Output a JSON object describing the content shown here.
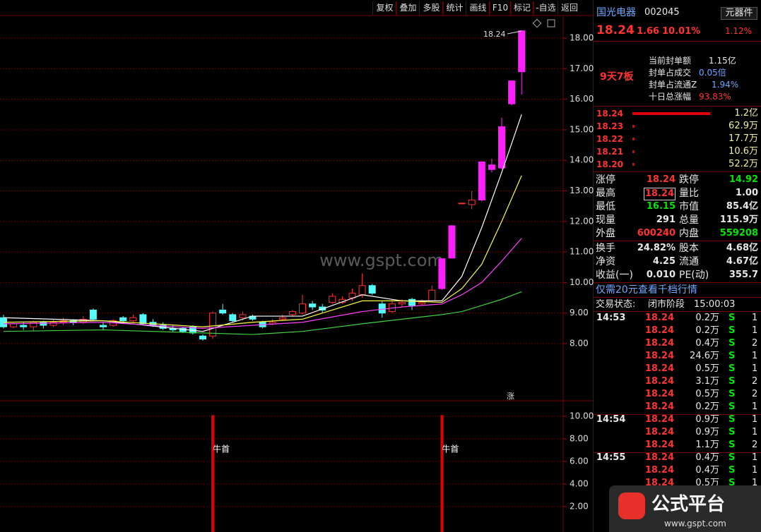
{
  "toolbar": [
    "复权",
    "叠加",
    "多股",
    "统计",
    "画线",
    "F10",
    "标记",
    "-自选",
    "返回"
  ],
  "chart_data": {
    "type": "candlestick",
    "categories": [
      null,
      null,
      null,
      null,
      null,
      null,
      null,
      null,
      null,
      null,
      null,
      null,
      null,
      null,
      null,
      null,
      null,
      null,
      null,
      null,
      null,
      null,
      null,
      null,
      null,
      null,
      null,
      null,
      null,
      null,
      null,
      null,
      null,
      null,
      null,
      null,
      null,
      null,
      null,
      null,
      null,
      null,
      null,
      null,
      null,
      null,
      null,
      null,
      null,
      null,
      null,
      null,
      null
    ],
    "open": [
      8.85,
      8.55,
      8.6,
      8.55,
      8.7,
      8.6,
      8.7,
      8.75,
      8.7,
      9.1,
      8.6,
      8.6,
      8.85,
      8.75,
      8.95,
      8.7,
      8.6,
      8.5,
      8.5,
      8.55,
      8.25,
      8.25,
      9.1,
      8.95,
      8.85,
      8.9,
      8.7,
      8.65,
      8.8,
      8.95,
      9.0,
      9.3,
      9.2,
      9.35,
      9.35,
      9.5,
      9.6,
      9.9,
      9.3,
      9.05,
      9.3,
      9.45,
      9.3,
      9.4,
      9.8,
      10.8,
      12.6,
      12.55,
      12.7,
      13.85,
      13.75,
      15.85,
      16.9
    ],
    "close": [
      8.55,
      8.65,
      8.55,
      8.7,
      8.6,
      8.7,
      8.75,
      8.7,
      8.8,
      8.8,
      8.55,
      8.75,
      8.75,
      8.85,
      8.65,
      8.6,
      8.5,
      8.45,
      8.4,
      8.35,
      8.15,
      9.0,
      9.0,
      8.75,
      8.95,
      8.8,
      8.55,
      8.7,
      8.85,
      9.05,
      9.3,
      9.2,
      9.1,
      9.55,
      9.45,
      9.65,
      9.9,
      9.65,
      9.0,
      9.3,
      9.35,
      9.25,
      9.35,
      9.75,
      10.78,
      11.86,
      12.6,
      12.7,
      13.95,
      13.7,
      15.1,
      16.6,
      18.24
    ],
    "high": [
      8.95,
      8.7,
      8.7,
      8.75,
      8.75,
      8.8,
      8.85,
      8.8,
      8.9,
      9.15,
      8.7,
      8.8,
      8.9,
      8.95,
      9.0,
      8.8,
      8.7,
      8.6,
      8.55,
      8.6,
      8.3,
      9.05,
      9.3,
      9.0,
      9.05,
      8.95,
      8.75,
      8.8,
      8.95,
      9.1,
      9.6,
      9.4,
      9.3,
      9.65,
      9.55,
      9.8,
      10.3,
      9.95,
      9.4,
      9.45,
      9.45,
      9.5,
      9.45,
      9.9,
      10.78,
      11.86,
      12.6,
      13.0,
      13.95,
      14.05,
      15.4,
      16.6,
      18.24
    ],
    "low": [
      8.5,
      8.5,
      8.45,
      8.4,
      8.5,
      8.55,
      8.6,
      8.6,
      8.65,
      8.75,
      8.45,
      8.55,
      8.7,
      8.7,
      8.6,
      8.55,
      8.45,
      8.4,
      8.35,
      8.3,
      8.1,
      8.15,
      8.95,
      8.7,
      8.75,
      8.75,
      8.5,
      8.6,
      8.75,
      8.9,
      8.95,
      9.1,
      9.0,
      9.3,
      9.3,
      9.4,
      9.5,
      9.6,
      8.85,
      9.0,
      9.2,
      9.1,
      9.25,
      9.35,
      9.75,
      10.8,
      12.6,
      12.4,
      12.65,
      13.6,
      13.7,
      15.8,
      16.15
    ],
    "limit_up": [
      44,
      45,
      48,
      49,
      50,
      51,
      52
    ],
    "colors": {
      "up": "#ff3232",
      "down": "#54fcfc",
      "limit_up": "#ff20ff"
    },
    "ylim": [
      6.13,
      18.74
    ],
    "yticks": [
      {
        "value": 8,
        "label": "8.00"
      },
      {
        "value": 9,
        "label": "9.00"
      },
      {
        "value": 10,
        "label": "10.00"
      },
      {
        "value": 11,
        "label": "11.00"
      },
      {
        "value": 12,
        "label": "12.00"
      },
      {
        "value": 13,
        "label": "13.00"
      },
      {
        "value": 14,
        "label": "14.00"
      },
      {
        "value": 15,
        "label": "15.00"
      },
      {
        "value": 16,
        "label": "16.00"
      },
      {
        "value": 17,
        "label": "17.00"
      },
      {
        "value": 18,
        "label": "18.00"
      }
    ],
    "grid": true,
    "annotation": "18.24",
    "marker": "涨",
    "watermark": "www.gspt.com",
    "moving_averages": {
      "x": [
        0,
        10,
        20,
        25,
        30,
        36,
        40,
        44,
        46,
        48,
        50,
        52
      ],
      "series": [
        {
          "color": "#ffffff",
          "values": [
            8.85,
            8.75,
            8.4,
            8.9,
            8.9,
            9.6,
            9.4,
            9.4,
            10.2,
            11.8,
            13.6,
            15.5
          ]
        },
        {
          "color": "#ffff40",
          "values": [
            8.7,
            8.75,
            8.55,
            8.7,
            8.8,
            9.4,
            9.4,
            9.35,
            9.8,
            10.6,
            12.0,
            13.5
          ]
        },
        {
          "color": "#ff40ff",
          "values": [
            8.65,
            8.7,
            8.5,
            8.6,
            8.7,
            9.05,
            9.2,
            9.3,
            9.6,
            10.0,
            10.7,
            11.45
          ]
        },
        {
          "color": "#40d040",
          "values": [
            8.4,
            8.45,
            8.35,
            8.3,
            8.4,
            8.65,
            8.8,
            8.95,
            9.05,
            9.25,
            9.45,
            9.7
          ]
        }
      ]
    }
  },
  "indicator": {
    "type": "bar",
    "x": [
      21,
      44
    ],
    "values": [
      10.1,
      10.1
    ],
    "labels": [
      "牛首",
      "牛首"
    ],
    "color": "#e00000",
    "ylim": [
      -0.25,
      11.375
    ],
    "yticks": [
      {
        "value": 2,
        "label": "2.00"
      },
      {
        "value": 4,
        "label": "4.00"
      },
      {
        "value": 6,
        "label": "6.00"
      },
      {
        "value": 8,
        "label": "8.00"
      },
      {
        "value": 10,
        "label": "10.00"
      }
    ]
  },
  "quote": {
    "name": "国光电器",
    "code": "002045",
    "sector": "元器件",
    "sector_change": "1.12%",
    "price": "18.24",
    "change": "1.66",
    "change_pct": "10.01%"
  },
  "limit_info": {
    "streak": "9天7板",
    "rows": [
      [
        "当前封单额",
        "1.15亿"
      ],
      [
        "封单占成交",
        "0.05倍"
      ],
      [
        "封单占流通Z",
        "1.94%"
      ],
      [
        "十日总涨幅",
        "93.83%"
      ]
    ]
  },
  "order_book": [
    [
      "18.24",
      "1.2亿"
    ],
    [
      "18.23",
      "62.9万"
    ],
    [
      "18.22",
      "17.7万"
    ],
    [
      "18.21",
      "10.6万"
    ],
    [
      "18.20",
      "52.2万"
    ]
  ],
  "stats": [
    [
      "涨停",
      "18.24",
      "跌停",
      "14.92"
    ],
    [
      "最高",
      "18.24",
      "量比",
      "1.00"
    ],
    [
      "最低",
      "16.15",
      "市值",
      "85.4亿"
    ],
    [
      "现量",
      "291",
      "总量",
      "115.9万"
    ],
    [
      "外盘",
      "600240",
      "内盘",
      "559208"
    ],
    [
      "换手",
      "24.82%",
      "股本",
      "4.68亿"
    ],
    [
      "净资",
      "4.25",
      "流通",
      "4.67亿"
    ],
    [
      "收益(一)",
      "0.010",
      "PE(动)",
      "355.7"
    ]
  ],
  "promo": "仅需20元查看千档行情",
  "status": [
    "交易状态:",
    "闭市阶段",
    "15:00:03"
  ],
  "ticks": [
    {
      "time": "14:53",
      "rows": [
        [
          "18.24",
          "0.2万",
          "S",
          "1"
        ],
        [
          "18.24",
          "0.2万",
          "S",
          "1"
        ],
        [
          "18.24",
          "0.4万",
          "S",
          "2"
        ],
        [
          "18.24",
          "24.6万",
          "S",
          "1"
        ],
        [
          "18.24",
          "0.5万",
          "S",
          "1"
        ],
        [
          "18.24",
          "3.1万",
          "S",
          "2"
        ],
        [
          "18.24",
          "0.5万",
          "S",
          "2"
        ],
        [
          "18.24",
          "0.2万",
          "S",
          "1"
        ]
      ]
    },
    {
      "time": "14:54",
      "rows": [
        [
          "18.24",
          "0.9万",
          "S",
          "1"
        ],
        [
          "18.24",
          "0.9万",
          "S",
          "1"
        ],
        [
          "18.24",
          "1.1万",
          "S",
          "2"
        ]
      ]
    },
    {
      "time": "14:55",
      "rows": [
        [
          "18.24",
          "0.4万",
          "S",
          "1"
        ],
        [
          "18.24",
          "0.4万",
          "S",
          "1"
        ],
        [
          "18.24",
          "0.5万",
          "S",
          "1"
        ]
      ]
    }
  ],
  "logo": {
    "name": "公式平台",
    "url": "www.gspt.com"
  }
}
